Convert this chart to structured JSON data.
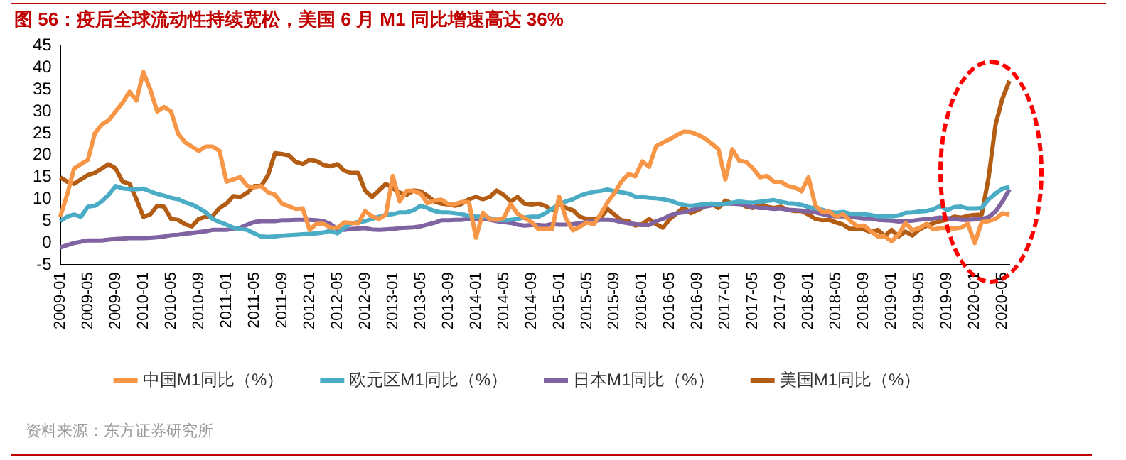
{
  "chart_data": {
    "type": "line",
    "title": "图 56：疫后全球流动性持续宽松，美国 6 月 M1 同比增速高达 36%",
    "annotations": [
      "资料来源：东方证券研究所"
    ],
    "categories": [
      "2009-01",
      null,
      null,
      null,
      "2009-05",
      null,
      null,
      null,
      "2009-09",
      null,
      null,
      null,
      "2010-01",
      null,
      null,
      null,
      "2010-05",
      null,
      null,
      null,
      "2010-09",
      null,
      null,
      null,
      "2011-01",
      null,
      null,
      null,
      "2011-05",
      null,
      null,
      null,
      "2011-09",
      null,
      null,
      null,
      "2012-01",
      null,
      null,
      null,
      "2012-05",
      null,
      null,
      null,
      "2012-09",
      null,
      null,
      null,
      "2013-01",
      null,
      null,
      null,
      "2013-05",
      null,
      null,
      null,
      "2013-09",
      null,
      null,
      null,
      "2014-01",
      null,
      null,
      null,
      "2014-05",
      null,
      null,
      null,
      "2014-09",
      null,
      null,
      null,
      "2015-01",
      null,
      null,
      null,
      "2015-05",
      null,
      null,
      null,
      "2015-09",
      null,
      null,
      null,
      "2016-01",
      null,
      null,
      null,
      "2016-05",
      null,
      null,
      null,
      "2016-09",
      null,
      null,
      null,
      "2017-01",
      null,
      null,
      null,
      "2017-05",
      null,
      null,
      null,
      "2017-09",
      null,
      null,
      null,
      "2018-01",
      null,
      null,
      null,
      "2018-05",
      null,
      null,
      null,
      "2018-09",
      null,
      null,
      null,
      "2019-01",
      null,
      null,
      null,
      "2019-05",
      null,
      null,
      null,
      "2019-09",
      null,
      null,
      null,
      "2020-01",
      null,
      null,
      null,
      "2020-05",
      null
    ],
    "series": [
      {
        "name": "中国M1同比（%）",
        "color": "#f79646",
        "values": [
          6,
          11,
          17,
          18,
          19,
          25,
          27,
          28,
          30,
          32,
          34.5,
          32.5,
          39,
          35,
          30,
          31,
          30,
          25,
          23,
          22,
          21,
          22,
          22,
          21,
          14,
          14.5,
          15,
          13,
          12.7,
          13,
          11.6,
          11,
          9,
          8.4,
          7.8,
          7.9,
          3,
          4.4,
          4.4,
          3.5,
          3.5,
          4.7,
          4.6,
          4.5,
          7.3,
          6.1,
          5.5,
          6.5,
          15.3,
          9.5,
          11.9,
          11.9,
          11.3,
          9.1,
          9.7,
          9.9,
          8.9,
          8.9,
          9.4,
          9.3,
          1.2,
          6.9,
          5.4,
          5.3,
          5.7,
          8.9,
          6.7,
          5.7,
          4.8,
          3.2,
          3.2,
          3.2,
          10.6,
          5.6,
          2.9,
          3.7,
          4.7,
          4.3,
          6.6,
          9.3,
          11.4,
          14,
          15.7,
          15.2,
          18.6,
          17.4,
          22.1,
          22.9,
          23.7,
          24.6,
          25.4,
          25.3,
          24.7,
          23.9,
          22.7,
          21.4,
          14.5,
          21.4,
          18.8,
          18.5,
          17,
          15,
          15.3,
          14,
          14,
          13,
          12.7,
          11.8,
          15,
          8.5,
          7.1,
          7.2,
          6,
          6.6,
          5.1,
          3.9,
          4,
          2.7,
          1.5,
          1.5,
          0.4,
          2,
          4.6,
          2.9,
          3.4,
          4.4,
          3.1,
          3.4,
          3.4,
          3.3,
          3.5,
          4.4,
          0,
          4.8,
          5,
          5.5,
          6.8,
          6.5
        ]
      },
      {
        "name": "欧元区M1同比（%）",
        "color": "#4bacc6",
        "values": [
          5,
          6,
          6.5,
          6,
          8.3,
          8.5,
          9.5,
          11,
          13,
          12.5,
          12.3,
          12.3,
          12.4,
          11.8,
          11.2,
          10.8,
          10.3,
          10,
          9.3,
          8.8,
          8,
          7,
          5.5,
          4.8,
          4.2,
          3.5,
          3.2,
          3,
          2.2,
          1.5,
          1.4,
          1.5,
          1.7,
          1.8,
          1.9,
          2,
          2.1,
          2.2,
          2.4,
          2.8,
          2.2,
          3.5,
          4.5,
          4.8,
          5,
          5.5,
          6,
          6.4,
          6.6,
          7,
          7,
          7.5,
          8.5,
          8,
          7.3,
          7,
          7,
          6.8,
          6.6,
          6.2,
          6,
          6,
          5.7,
          5.3,
          5.2,
          5.3,
          5.5,
          5.8,
          6,
          6,
          6.8,
          7.8,
          8.9,
          9.5,
          10,
          10.8,
          11.3,
          11.7,
          11.9,
          12.2,
          11.8,
          11.6,
          11.3,
          10.6,
          10.5,
          10.3,
          10.2,
          10,
          9.7,
          9.1,
          8.7,
          8.5,
          8.7,
          8.9,
          9,
          8.8,
          9,
          9.2,
          9.5,
          9.3,
          9.2,
          9.4,
          9.6,
          9.8,
          9.4,
          9.1,
          9,
          8.7,
          8.2,
          7.9,
          7.6,
          7.1,
          6.9,
          7.1,
          6.7,
          6.6,
          6.6,
          6.4,
          6.1,
          6.1,
          6.1,
          6.3,
          6.9,
          7,
          7.2,
          7.3,
          7.7,
          8.5,
          7.5,
          8.2,
          8.3,
          7.9,
          7.9,
          8,
          10,
          11.3,
          12.4,
          12.8
        ]
      },
      {
        "name": "日本M1同比（%）",
        "color": "#8064a2",
        "values": [
          -1,
          -0.5,
          0,
          0.3,
          0.6,
          0.6,
          0.6,
          0.8,
          0.9,
          1,
          1.1,
          1.1,
          1.1,
          1.2,
          1.3,
          1.5,
          1.8,
          1.9,
          2.1,
          2.3,
          2.5,
          2.7,
          3,
          3,
          3,
          3.3,
          3.5,
          4.2,
          4.8,
          5,
          5,
          5,
          5.2,
          5.2,
          5.3,
          5.3,
          5.3,
          5.2,
          5,
          4.3,
          3.2,
          3,
          3.2,
          3.3,
          3.4,
          3.1,
          3,
          3.1,
          3.2,
          3.4,
          3.5,
          3.6,
          3.8,
          4.2,
          4.6,
          5.2,
          5.2,
          5.3,
          5.3,
          5.5,
          5.5,
          5.6,
          5.3,
          5,
          4.8,
          4.6,
          4.2,
          4,
          4.1,
          4.1,
          4,
          4.3,
          4.2,
          4.2,
          4.3,
          4.5,
          4.8,
          5,
          5.3,
          5.3,
          5.2,
          4.8,
          4.5,
          4.3,
          4.1,
          4.1,
          5,
          5.5,
          6.3,
          6.8,
          7,
          7.5,
          7.9,
          8.3,
          8.6,
          8.8,
          9,
          9,
          8.9,
          8.6,
          8.2,
          8,
          8,
          7.8,
          7.9,
          7.6,
          7.5,
          7.4,
          7.2,
          7,
          6.6,
          6.2,
          6.1,
          6.1,
          6,
          5.8,
          5.6,
          5.6,
          5.3,
          5.2,
          5.1,
          4.9,
          5,
          5.1,
          5.3,
          5.5,
          5.6,
          5.8,
          5.7,
          5.5,
          5.3,
          5.3,
          5.4,
          5.5,
          5.9,
          7.2,
          9.5,
          12.2
        ]
      },
      {
        "name": "美国M1同比（%）",
        "color": "#b35c14",
        "values": [
          15,
          14,
          13.5,
          14.5,
          15.5,
          16,
          17,
          18,
          17,
          14,
          13.5,
          10,
          6,
          6.5,
          8.5,
          8.3,
          5.5,
          5.3,
          4.3,
          3.8,
          5.5,
          6,
          6.2,
          8,
          9,
          10.7,
          10.5,
          11.5,
          13,
          13,
          15.5,
          20.5,
          20.3,
          20,
          18.5,
          18,
          19,
          18.7,
          17.8,
          17.5,
          18,
          16.5,
          16,
          16,
          12,
          10.5,
          12,
          13.5,
          12.5,
          11.5,
          11,
          12,
          11.8,
          10.8,
          9.5,
          9,
          8.8,
          8.5,
          9,
          10,
          10.5,
          10,
          10.5,
          12,
          11,
          9.5,
          10.5,
          9,
          8.8,
          9,
          8.5,
          7.5,
          9,
          8,
          7.5,
          6,
          5.5,
          5.5,
          5.8,
          7.8,
          6.5,
          5.2,
          5,
          4,
          4.3,
          5.5,
          4.3,
          3.5,
          5.5,
          6.8,
          8.2,
          6.8,
          7.5,
          8.3,
          9,
          8,
          9.7,
          9,
          9.2,
          8.3,
          8,
          9,
          8.3,
          8,
          8.3,
          7.6,
          7.3,
          7.3,
          6.5,
          5.5,
          5.2,
          5.3,
          4.7,
          4.2,
          3.2,
          3.3,
          3.1,
          2.5,
          3,
          1.6,
          3,
          1.5,
          2.6,
          1.7,
          3.1,
          3.9,
          4.5,
          5,
          5.3,
          6,
          5.8,
          6.2,
          6.4,
          6.5,
          15,
          27,
          33,
          37
        ]
      }
    ],
    "ylim": [
      -5,
      45
    ],
    "yticks": [
      -5,
      0,
      5,
      10,
      15,
      20,
      25,
      30,
      35,
      40,
      45
    ],
    "grid": false,
    "legend": "bottom",
    "marker": "none",
    "line_style": "solid"
  }
}
